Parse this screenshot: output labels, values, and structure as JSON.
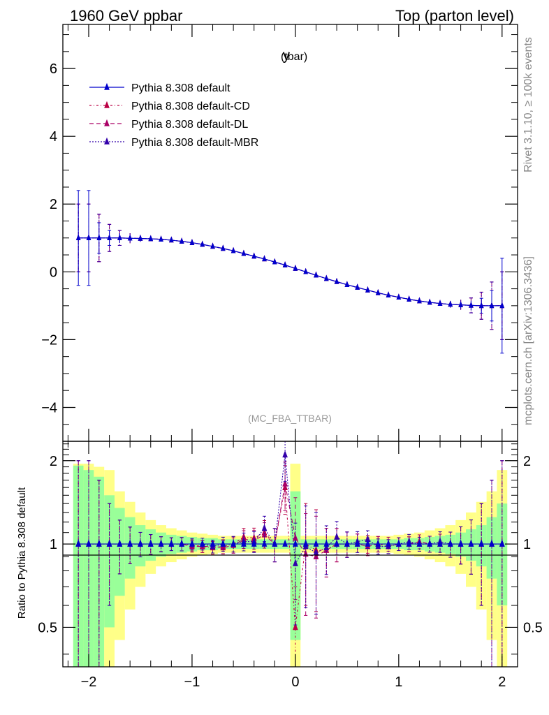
{
  "header": {
    "left_title": "1960 GeV ppbar",
    "right_title": "Top (parton level)"
  },
  "side_labels": {
    "rivet": "Rivet 3.1.10, ≥ 100k events",
    "mcplots": "mcplots.cern.ch [arXiv:1306.3436]"
  },
  "chart_data": [
    {
      "type": "line",
      "title": "y",
      "title_sub": "(tbar)",
      "watermark": "(MC_FBA_TTBAR)",
      "xlim": [
        -2.25,
        2.15
      ],
      "ylim": [
        -5.0,
        7.3
      ],
      "xticks": [
        -2,
        -1,
        0,
        1,
        2
      ],
      "xtick_labels": [
        "−2",
        "−1",
        "0",
        "1",
        "2"
      ],
      "yticks": [
        -4,
        -2,
        0,
        2,
        4,
        6
      ],
      "ytick_labels": [
        "−4",
        "−2",
        "0",
        "2",
        "4",
        "6"
      ],
      "legend_placement": "top-left",
      "x": [
        -2.1,
        -2.0,
        -1.9,
        -1.8,
        -1.7,
        -1.6,
        -1.5,
        -1.4,
        -1.3,
        -1.2,
        -1.1,
        -1.0,
        -0.9,
        -0.8,
        -0.7,
        -0.6,
        -0.5,
        -0.4,
        -0.3,
        -0.2,
        -0.1,
        0.0,
        0.1,
        0.2,
        0.3,
        0.4,
        0.5,
        0.6,
        0.7,
        0.8,
        0.9,
        1.0,
        1.1,
        1.2,
        1.3,
        1.4,
        1.5,
        1.6,
        1.7,
        1.8,
        1.9,
        2.0
      ],
      "series": [
        {
          "name": "Pythia 8.308 default",
          "color": "#0000cc",
          "dash": "solid",
          "values": [
            1.0,
            1.0,
            1.0,
            1.0,
            1.0,
            0.99,
            0.985,
            0.975,
            0.96,
            0.935,
            0.9,
            0.86,
            0.81,
            0.75,
            0.69,
            0.62,
            0.54,
            0.46,
            0.38,
            0.29,
            0.2,
            0.1,
            0.0,
            -0.1,
            -0.2,
            -0.29,
            -0.38,
            -0.46,
            -0.54,
            -0.62,
            -0.69,
            -0.75,
            -0.81,
            -0.86,
            -0.9,
            -0.935,
            -0.96,
            -0.975,
            -0.99,
            -1.0,
            -1.0,
            -1.0
          ],
          "errors": [
            1.4,
            1.4,
            0.45,
            0.22,
            0.14,
            0.1,
            0.08,
            0.06,
            0.05,
            0.04,
            0.04,
            0.03,
            0.03,
            0.03,
            0.03,
            0.03,
            0.03,
            0.03,
            0.03,
            0.03,
            0.03,
            0.03,
            0.03,
            0.03,
            0.03,
            0.03,
            0.03,
            0.03,
            0.03,
            0.03,
            0.03,
            0.03,
            0.04,
            0.04,
            0.05,
            0.06,
            0.08,
            0.1,
            0.14,
            0.22,
            0.45,
            1.4
          ],
          "ratio": [
            1,
            1,
            1,
            1,
            1,
            1,
            1,
            1,
            1,
            1,
            1,
            1,
            1,
            1,
            1,
            1,
            1,
            1,
            1,
            1,
            1,
            1,
            1,
            1,
            1,
            1,
            1,
            1,
            1,
            1,
            1,
            1,
            1,
            1,
            1,
            1,
            1,
            1,
            1,
            1,
            1,
            1
          ]
        },
        {
          "name": "Pythia 8.308 default-CD",
          "color": "#bb0044",
          "dash": "3,3,1,3",
          "values": [
            1.0,
            1.0,
            1.0,
            1.0,
            1.0,
            0.99,
            0.985,
            0.975,
            0.96,
            0.935,
            0.9,
            0.86,
            0.81,
            0.75,
            0.69,
            0.62,
            0.54,
            0.46,
            0.38,
            0.29,
            0.2,
            0.1,
            0.0,
            -0.1,
            -0.2,
            -0.29,
            -0.38,
            -0.46,
            -0.54,
            -0.62,
            -0.69,
            -0.75,
            -0.81,
            -0.86,
            -0.9,
            -0.935,
            -0.96,
            -0.975,
            -0.99,
            -1.0,
            -1.0,
            -1.0
          ],
          "errors": [
            1.0,
            1.0,
            0.7,
            0.4,
            0.22,
            0.15,
            0.1,
            0.08,
            0.06,
            0.05,
            0.05,
            0.04,
            0.04,
            0.04,
            0.04,
            0.04,
            0.04,
            0.04,
            0.04,
            0.04,
            0.04,
            0.04,
            0.04,
            0.04,
            0.04,
            0.04,
            0.04,
            0.04,
            0.04,
            0.04,
            0.04,
            0.04,
            0.05,
            0.05,
            0.06,
            0.08,
            0.1,
            0.15,
            0.22,
            0.4,
            0.7,
            1.0
          ],
          "ratio": [
            1.0,
            1.0,
            1.0,
            1.0,
            1.0,
            1.0,
            1.0,
            1.0,
            1.0,
            1.0,
            1.0,
            0.99,
            0.98,
            0.97,
            0.98,
            1.0,
            1.06,
            1.05,
            1.1,
            1.0,
            1.6,
            0.5,
            1.0,
            0.95,
            0.95,
            1.0,
            1.0,
            1.0,
            1.0,
            1.0,
            0.98,
            1.0,
            1.0,
            1.0,
            1.0,
            1.0,
            1.0,
            1.0,
            1.0,
            1.0,
            1.0,
            1.0
          ]
        },
        {
          "name": "Pythia 8.308 default-DL",
          "color": "#aa0066",
          "dash": "6,4",
          "values": [
            1.0,
            1.0,
            1.0,
            1.0,
            1.0,
            0.99,
            0.985,
            0.975,
            0.96,
            0.935,
            0.9,
            0.86,
            0.81,
            0.75,
            0.69,
            0.62,
            0.54,
            0.46,
            0.38,
            0.29,
            0.2,
            0.1,
            0.0,
            -0.1,
            -0.2,
            -0.29,
            -0.38,
            -0.46,
            -0.54,
            -0.62,
            -0.69,
            -0.75,
            -0.81,
            -0.86,
            -0.9,
            -0.935,
            -0.96,
            -0.975,
            -0.99,
            -1.0,
            -1.0,
            -1.0
          ],
          "errors": [
            1.0,
            1.0,
            0.7,
            0.4,
            0.22,
            0.15,
            0.1,
            0.08,
            0.06,
            0.05,
            0.05,
            0.04,
            0.04,
            0.04,
            0.04,
            0.04,
            0.04,
            0.04,
            0.04,
            0.04,
            0.04,
            0.04,
            0.04,
            0.04,
            0.04,
            0.04,
            0.04,
            0.04,
            0.04,
            0.04,
            0.04,
            0.04,
            0.05,
            0.05,
            0.06,
            0.08,
            0.1,
            0.15,
            0.22,
            0.4,
            0.7,
            1.0
          ],
          "ratio": [
            1.0,
            1.0,
            1.0,
            1.0,
            1.0,
            1.0,
            1.0,
            1.0,
            1.0,
            1.0,
            1.0,
            0.98,
            0.98,
            0.98,
            0.97,
            0.99,
            1.04,
            1.03,
            1.08,
            1.0,
            1.65,
            1.05,
            0.92,
            0.9,
            0.95,
            1.0,
            1.0,
            1.0,
            0.98,
            1.0,
            1.0,
            1.0,
            1.0,
            1.02,
            1.0,
            1.0,
            1.0,
            1.0,
            1.0,
            1.0,
            1.0,
            1.0
          ]
        },
        {
          "name": "Pythia 8.308 default-MBR",
          "color": "#3300aa",
          "dash": "2,2",
          "values": [
            1.0,
            1.0,
            1.0,
            1.0,
            1.0,
            0.99,
            0.985,
            0.975,
            0.96,
            0.935,
            0.9,
            0.86,
            0.81,
            0.75,
            0.69,
            0.62,
            0.54,
            0.46,
            0.38,
            0.29,
            0.2,
            0.1,
            0.0,
            -0.1,
            -0.2,
            -0.29,
            -0.38,
            -0.46,
            -0.54,
            -0.62,
            -0.69,
            -0.75,
            -0.81,
            -0.86,
            -0.9,
            -0.935,
            -0.96,
            -0.975,
            -0.99,
            -1.0,
            -1.0,
            -1.0
          ],
          "errors": [
            1.0,
            1.0,
            0.7,
            0.4,
            0.22,
            0.15,
            0.1,
            0.08,
            0.06,
            0.05,
            0.05,
            0.04,
            0.04,
            0.04,
            0.04,
            0.04,
            0.04,
            0.04,
            0.04,
            0.04,
            0.04,
            0.04,
            0.04,
            0.04,
            0.04,
            0.04,
            0.04,
            0.04,
            0.04,
            0.04,
            0.04,
            0.04,
            0.05,
            0.05,
            0.06,
            0.08,
            0.1,
            0.15,
            0.22,
            0.4,
            0.7,
            1.0
          ],
          "ratio": [
            1.0,
            1.0,
            1.0,
            1.0,
            1.0,
            1.0,
            1.0,
            1.0,
            1.0,
            1.0,
            1.0,
            1.0,
            1.0,
            0.98,
            1.0,
            1.0,
            1.02,
            1.02,
            1.14,
            1.0,
            2.1,
            0.85,
            0.98,
            0.93,
            0.97,
            1.06,
            1.0,
            1.02,
            1.04,
            0.98,
            0.98,
            1.0,
            1.02,
            1.0,
            1.0,
            1.02,
            1.0,
            1.0,
            1.0,
            1.0,
            1.0,
            1.0
          ]
        }
      ]
    },
    {
      "type": "area",
      "ylabel": "Ratio to Pythia 8.308 default",
      "ylim": [
        0.36,
        2.35
      ],
      "y_scale": "log",
      "yticks": [
        0.5,
        1,
        2
      ],
      "ytick_labels": [
        "0.5",
        "1",
        "2"
      ],
      "xlim": [
        -2.25,
        2.15
      ],
      "xticks": [
        -2,
        -1,
        0,
        1,
        2
      ],
      "xtick_labels": [
        "−2",
        "−1",
        "0",
        "1",
        "2"
      ],
      "bin_edges": [
        -2.15,
        -2.05,
        -1.95,
        -1.85,
        -1.75,
        -1.65,
        -1.55,
        -1.45,
        -1.35,
        -1.25,
        -1.15,
        -1.05,
        -0.95,
        -0.85,
        -0.75,
        -0.65,
        -0.55,
        -0.45,
        -0.35,
        -0.25,
        -0.15,
        -0.05,
        0.05,
        0.15,
        0.25,
        0.35,
        0.45,
        0.55,
        0.65,
        0.75,
        0.85,
        0.95,
        1.05,
        1.15,
        1.25,
        1.35,
        1.45,
        1.55,
        1.65,
        1.75,
        1.85,
        1.95,
        2.05
      ],
      "band_colors": {
        "inner": "#99ff99",
        "outer": "#ffff88"
      },
      "inner_band": [
        0.92,
        0.85,
        0.75,
        0.5,
        0.35,
        0.25,
        0.17,
        0.13,
        0.1,
        0.08,
        0.07,
        0.06,
        0.05,
        0.05,
        0.04,
        0.04,
        0.04,
        0.04,
        0.04,
        0.04,
        0.04,
        0.55,
        0.04,
        0.04,
        0.04,
        0.04,
        0.04,
        0.04,
        0.04,
        0.04,
        0.04,
        0.04,
        0.05,
        0.05,
        0.06,
        0.07,
        0.08,
        0.1,
        0.13,
        0.17,
        0.25,
        0.4,
        0.85
      ],
      "outer_band": [
        0.95,
        0.95,
        0.9,
        0.85,
        0.55,
        0.42,
        0.3,
        0.22,
        0.17,
        0.14,
        0.12,
        0.1,
        0.09,
        0.08,
        0.07,
        0.07,
        0.07,
        0.07,
        0.07,
        0.07,
        0.07,
        0.95,
        0.07,
        0.07,
        0.07,
        0.07,
        0.07,
        0.07,
        0.07,
        0.07,
        0.07,
        0.08,
        0.09,
        0.1,
        0.12,
        0.14,
        0.17,
        0.22,
        0.3,
        0.42,
        0.55,
        0.85,
        0.95
      ]
    }
  ]
}
